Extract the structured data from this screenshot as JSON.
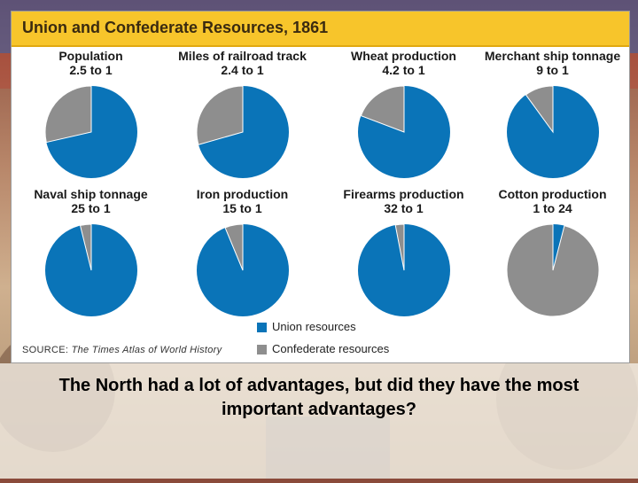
{
  "colors": {
    "union": "#0a74b8",
    "confederate": "#8e8e8e",
    "title_band": "#f7c52b"
  },
  "figure": {
    "title": "Union and Confederate Resources, 1861",
    "source_prefix": "SOURCE:",
    "source_title": "The Times Atlas of World History",
    "legend": [
      {
        "label": "Union resources",
        "color": "#0a74b8"
      },
      {
        "label": "Confederate resources",
        "color": "#8e8e8e"
      }
    ]
  },
  "chart_data": [
    {
      "type": "pie",
      "title": "Population",
      "ratio_label": "2.5 to 1",
      "union": 2.5,
      "confederate": 1
    },
    {
      "type": "pie",
      "title": "Miles of railroad track",
      "ratio_label": "2.4 to 1",
      "union": 2.4,
      "confederate": 1
    },
    {
      "type": "pie",
      "title": "Wheat production",
      "ratio_label": "4.2 to 1",
      "union": 4.2,
      "confederate": 1
    },
    {
      "type": "pie",
      "title": "Merchant ship tonnage",
      "ratio_label": "9 to 1",
      "union": 9,
      "confederate": 1
    },
    {
      "type": "pie",
      "title": "Naval ship tonnage",
      "ratio_label": "25 to 1",
      "union": 25,
      "confederate": 1
    },
    {
      "type": "pie",
      "title": "Iron production",
      "ratio_label": "15 to 1",
      "union": 15,
      "confederate": 1
    },
    {
      "type": "pie",
      "title": "Firearms production",
      "ratio_label": "32 to 1",
      "union": 32,
      "confederate": 1
    },
    {
      "type": "pie",
      "title": "Cotton production",
      "ratio_label": "1 to 24",
      "union": 1,
      "confederate": 24
    }
  ],
  "caption": "The North had a lot of advantages, but did they have the most important advantages?"
}
